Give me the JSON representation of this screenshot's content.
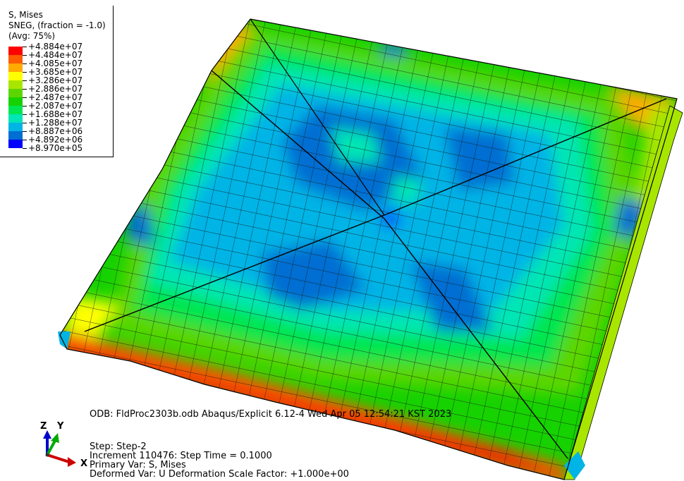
{
  "legend": {
    "title": "S, Mises",
    "subtitle": "SNEG, (fraction = -1.0)",
    "averaging": "(Avg: 75%)",
    "entries": [
      {
        "label": "+4.884e+07",
        "color": "#ff0000"
      },
      {
        "label": "+4.484e+07",
        "color": "#ff5a00"
      },
      {
        "label": "+4.085e+07",
        "color": "#ffaa00"
      },
      {
        "label": "+3.685e+07",
        "color": "#ffff00"
      },
      {
        "label": "+3.286e+07",
        "color": "#a8e600"
      },
      {
        "label": "+2.886e+07",
        "color": "#5cd600"
      },
      {
        "label": "+2.487e+07",
        "color": "#16d200"
      },
      {
        "label": "+2.087e+07",
        "color": "#00e650"
      },
      {
        "label": "+1.688e+07",
        "color": "#00e6b4"
      },
      {
        "label": "+1.288e+07",
        "color": "#00b4e6"
      },
      {
        "label": "+8.887e+06",
        "color": "#006ed2"
      },
      {
        "label": "+4.892e+06",
        "color": "#0000ff"
      },
      {
        "label": "+8.970e+05",
        "color": ""
      }
    ]
  },
  "info": {
    "odb_line": "ODB: FldProc2303b.odb    Abaqus/Explicit 6.12-4    Wed Apr 05 12:54:21 KST 2023",
    "step": "Step: Step-2",
    "increment": "Increment    110476: Step Time =    0.1000",
    "primary_var": "Primary Var: S, Mises",
    "deformed_var": "Deformed Var: U   Deformation Scale Factor: +1.000e+00"
  },
  "triad": {
    "z": "Z",
    "y": "Y",
    "x": "X"
  }
}
